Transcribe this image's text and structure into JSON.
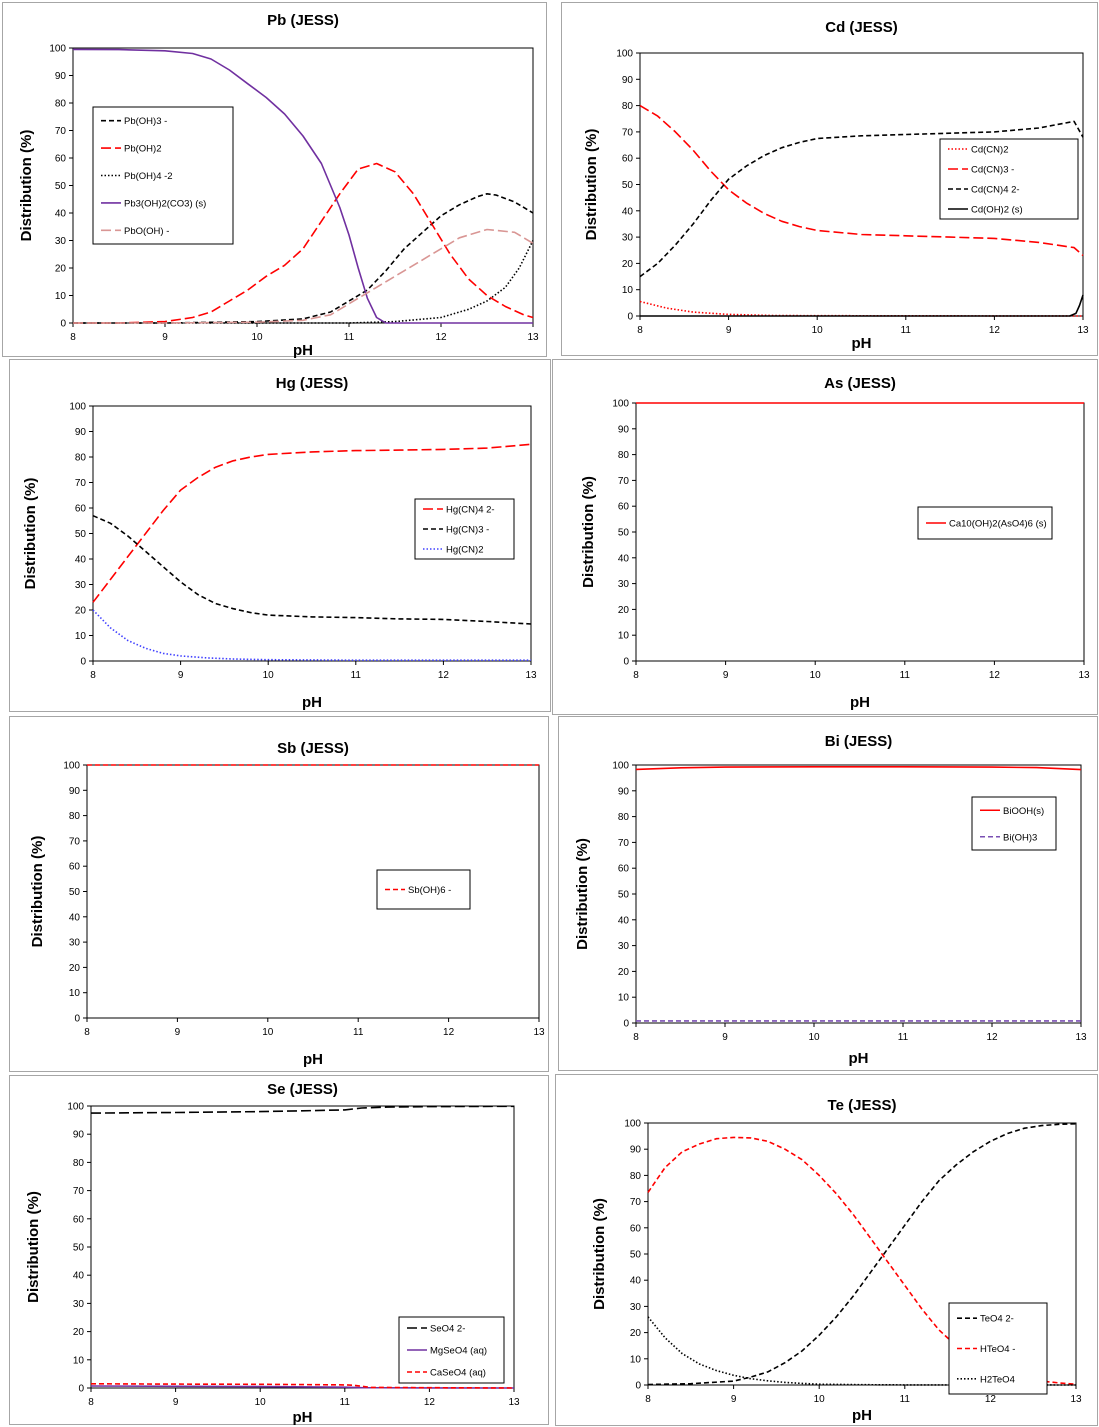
{
  "colors": {
    "red": "#ff0000",
    "black": "#000000",
    "purple": "#7030a0",
    "rosy": "#d99694",
    "blue": "#4f81bd",
    "violet": "#7a4fb3"
  },
  "chart_data": [
    {
      "id": "pb",
      "type": "line",
      "title": "Pb (JESS)",
      "xlabel": "pH",
      "ylabel": "Distribution (%)",
      "xlim": [
        8,
        13
      ],
      "ylim": [
        0,
        100
      ],
      "xticks": [
        "8",
        "9",
        "10",
        "11",
        "12",
        "13"
      ],
      "yticks": [
        "0",
        "10",
        "20",
        "30",
        "40",
        "50",
        "60",
        "70",
        "80",
        "90",
        "100"
      ],
      "legend_position": "upper-left",
      "series": [
        {
          "name": "Pb(OH)3 -",
          "color": "#000000",
          "dash": "dashed",
          "x": [
            8,
            9,
            10,
            10.5,
            10.8,
            11,
            11.2,
            11.4,
            11.6,
            11.8,
            12,
            12.2,
            12.4,
            12.5,
            12.6,
            12.8,
            13
          ],
          "y": [
            0,
            0,
            0.5,
            1.5,
            4,
            8,
            12,
            19,
            27,
            33,
            39,
            43,
            46,
            47,
            46.5,
            44,
            40
          ]
        },
        {
          "name": "Pb(OH)2",
          "color": "#ff0000",
          "dash": "longdash",
          "x": [
            8,
            8.5,
            9,
            9.3,
            9.5,
            9.7,
            9.9,
            10.1,
            10.3,
            10.5,
            10.7,
            10.9,
            11.1,
            11.3,
            11.5,
            11.7,
            11.9,
            12.1,
            12.3,
            12.5,
            12.7,
            12.9,
            13
          ],
          "y": [
            0,
            0,
            0.5,
            2,
            4,
            8,
            12,
            17,
            21,
            27,
            37,
            47,
            56,
            58,
            55,
            47,
            36,
            25,
            16,
            10,
            6,
            3,
            2
          ]
        },
        {
          "name": "Pb(OH)4 -2",
          "color": "#000000",
          "dash": "dotted",
          "x": [
            8,
            11,
            11.5,
            12,
            12.3,
            12.5,
            12.7,
            12.85,
            13
          ],
          "y": [
            0,
            0,
            0.5,
            2,
            5,
            8,
            13,
            20,
            30
          ]
        },
        {
          "name": "Pb3(OH)2(CO3) (s)",
          "color": "#7030a0",
          "dash": "solid",
          "x": [
            8,
            8.5,
            9,
            9.3,
            9.5,
            9.7,
            9.9,
            10.1,
            10.3,
            10.5,
            10.7,
            10.9,
            11,
            11.1,
            11.2,
            11.3,
            11.4,
            13
          ],
          "y": [
            99.5,
            99.4,
            99,
            98,
            96,
            92,
            87,
            82,
            76,
            68,
            58,
            42,
            32,
            20,
            9,
            2,
            0,
            0
          ]
        },
        {
          "name": "PbO(OH) -",
          "color": "#d99694",
          "dash": "longdash",
          "x": [
            8,
            9,
            10,
            10.5,
            10.8,
            11,
            11.3,
            11.6,
            11.9,
            12.2,
            12.5,
            12.8,
            13
          ],
          "y": [
            0,
            0,
            0.3,
            1,
            3,
            7,
            13,
            19,
            25,
            31,
            34,
            33,
            29
          ]
        }
      ]
    },
    {
      "id": "cd",
      "type": "line",
      "title": "Cd (JESS)",
      "xlabel": "pH",
      "ylabel": "Distribution (%)",
      "xlim": [
        8,
        13
      ],
      "ylim": [
        0,
        100
      ],
      "xticks": [
        "8",
        "9",
        "10",
        "11",
        "12",
        "13"
      ],
      "yticks": [
        "0",
        "10",
        "20",
        "30",
        "40",
        "50",
        "60",
        "70",
        "80",
        "90",
        "100"
      ],
      "legend_position": "right",
      "series": [
        {
          "name": "Cd(CN)2",
          "color": "#ff0000",
          "dash": "dotted",
          "x": [
            8,
            8.3,
            8.6,
            9,
            9.5,
            10,
            13
          ],
          "y": [
            5.5,
            3,
            1.5,
            0.6,
            0.2,
            0.1,
            0
          ]
        },
        {
          "name": "Cd(CN)3 -",
          "color": "#ff0000",
          "dash": "longdash",
          "x": [
            8,
            8.2,
            8.4,
            8.6,
            8.8,
            9,
            9.2,
            9.4,
            9.6,
            9.8,
            10,
            10.5,
            11,
            11.5,
            12,
            12.5,
            12.9,
            13
          ],
          "y": [
            80,
            76,
            70,
            63,
            55,
            48,
            43,
            39,
            36,
            34,
            32.5,
            31,
            30.5,
            30,
            29.5,
            28,
            26,
            23
          ]
        },
        {
          "name": "Cd(CN)4 2-",
          "color": "#000000",
          "dash": "dashed",
          "x": [
            8,
            8.2,
            8.4,
            8.6,
            8.8,
            9,
            9.2,
            9.4,
            9.6,
            9.8,
            10,
            10.5,
            11,
            11.5,
            12,
            12.5,
            12.9,
            13
          ],
          "y": [
            15,
            20,
            27,
            35,
            44,
            52,
            57,
            61,
            64,
            66,
            67.5,
            68.5,
            69,
            69.5,
            70,
            71.5,
            74,
            68
          ]
        },
        {
          "name": "Cd(OH)2 (s)",
          "color": "#000000",
          "dash": "solid",
          "x": [
            8,
            12.85,
            12.92,
            12.96,
            13
          ],
          "y": [
            0,
            0,
            1,
            4,
            8
          ]
        }
      ]
    },
    {
      "id": "hg",
      "type": "line",
      "title": "Hg (JESS)",
      "xlabel": "pH",
      "ylabel": "Distribution (%)",
      "xlim": [
        8,
        13
      ],
      "ylim": [
        0,
        100
      ],
      "xticks": [
        "8",
        "9",
        "10",
        "11",
        "12",
        "13"
      ],
      "yticks": [
        "0",
        "10",
        "20",
        "30",
        "40",
        "50",
        "60",
        "70",
        "80",
        "90",
        "100"
      ],
      "legend_position": "right",
      "series": [
        {
          "name": "Hg(CN)4 2-",
          "color": "#ff0000",
          "dash": "longdash",
          "x": [
            8,
            8.2,
            8.4,
            8.6,
            8.8,
            9,
            9.2,
            9.4,
            9.6,
            9.8,
            10,
            10.5,
            11,
            11.5,
            12,
            12.5,
            13
          ],
          "y": [
            23,
            32,
            41,
            50,
            59,
            67,
            72,
            76,
            78.5,
            80,
            81,
            82,
            82.5,
            82.7,
            83,
            83.5,
            85
          ]
        },
        {
          "name": "Hg(CN)3 -",
          "color": "#000000",
          "dash": "dashed",
          "x": [
            8,
            8.2,
            8.4,
            8.6,
            8.8,
            9,
            9.2,
            9.4,
            9.6,
            9.8,
            10,
            10.5,
            11,
            11.5,
            12,
            12.5,
            13
          ],
          "y": [
            57,
            54,
            49,
            43,
            37,
            31,
            26,
            22.5,
            20.5,
            19,
            18,
            17.3,
            17,
            16.5,
            16.3,
            15.5,
            14.5
          ]
        },
        {
          "name": "Hg(CN)2",
          "color": "#4040ff",
          "dash": "dotted",
          "x": [
            8,
            8.2,
            8.4,
            8.6,
            8.8,
            9,
            9.3,
            9.6,
            10,
            11,
            13
          ],
          "y": [
            20,
            13,
            8,
            5,
            3,
            2,
            1.2,
            0.8,
            0.5,
            0.3,
            0.3
          ]
        }
      ]
    },
    {
      "id": "as",
      "type": "line",
      "title": "As (JESS)",
      "xlabel": "pH",
      "ylabel": "Distribution (%)",
      "xlim": [
        8,
        13
      ],
      "ylim": [
        0,
        100
      ],
      "xticks": [
        "8",
        "9",
        "10",
        "11",
        "12",
        "13"
      ],
      "yticks": [
        "0",
        "10",
        "20",
        "30",
        "40",
        "50",
        "60",
        "70",
        "80",
        "90",
        "100"
      ],
      "legend_position": "right",
      "series": [
        {
          "name": "Ca10(OH)2(AsO4)6 (s)",
          "color": "#ff0000",
          "dash": "solid",
          "x": [
            8,
            13
          ],
          "y": [
            100,
            100
          ]
        }
      ]
    },
    {
      "id": "sb",
      "type": "line",
      "title": "Sb (JESS)",
      "xlabel": "pH",
      "ylabel": "Distribution (%)",
      "xlim": [
        8,
        13
      ],
      "ylim": [
        0,
        100
      ],
      "xticks": [
        "8",
        "9",
        "10",
        "11",
        "12",
        "13"
      ],
      "yticks": [
        "0",
        "10",
        "20",
        "30",
        "40",
        "50",
        "60",
        "70",
        "80",
        "90",
        "100"
      ],
      "legend_position": "right",
      "series": [
        {
          "name": "Sb(OH)6 -",
          "color": "#ff0000",
          "dash": "dashed",
          "x": [
            8,
            13
          ],
          "y": [
            100,
            100
          ]
        }
      ]
    },
    {
      "id": "bi",
      "type": "line",
      "title": "Bi (JESS)",
      "xlabel": "pH",
      "ylabel": "Distribution (%)",
      "xlim": [
        8,
        13
      ],
      "ylim": [
        0,
        100
      ],
      "xticks": [
        "8",
        "9",
        "10",
        "11",
        "12",
        "13"
      ],
      "yticks": [
        "0",
        "10",
        "20",
        "30",
        "40",
        "50",
        "60",
        "70",
        "80",
        "90",
        "100"
      ],
      "legend_position": "right",
      "series": [
        {
          "name": "BiOOH(s)",
          "color": "#ff0000",
          "dash": "solid",
          "x": [
            8,
            8.5,
            9,
            10,
            11,
            12,
            12.5,
            13
          ],
          "y": [
            98.3,
            98.9,
            99.2,
            99.3,
            99.3,
            99.2,
            99,
            98.2
          ]
        },
        {
          "name": "Bi(OH)3",
          "color": "#7a4fb3",
          "dash": "dashed",
          "x": [
            8,
            13
          ],
          "y": [
            0.8,
            0.8
          ]
        }
      ]
    },
    {
      "id": "se",
      "type": "line",
      "title": "Se (JESS)",
      "xlabel": "pH",
      "ylabel": "Distribution (%)",
      "xlim": [
        8,
        13
      ],
      "ylim": [
        0,
        100
      ],
      "xticks": [
        "8",
        "9",
        "10",
        "11",
        "12",
        "13"
      ],
      "yticks": [
        "0",
        "10",
        "20",
        "30",
        "40",
        "50",
        "60",
        "70",
        "80",
        "90",
        "100"
      ],
      "legend_position": "right",
      "series": [
        {
          "name": "SeO4 2-",
          "color": "#000000",
          "dash": "longdash",
          "x": [
            8,
            9,
            10,
            10.5,
            11,
            11.2,
            11.5,
            12,
            13
          ],
          "y": [
            97.5,
            97.7,
            98,
            98.3,
            98.6,
            99.3,
            99.6,
            99.8,
            99.9
          ]
        },
        {
          "name": "MgSeO4 (aq)",
          "color": "#7030a0",
          "dash": "solid",
          "x": [
            8,
            9,
            10,
            11,
            11.2,
            12,
            13
          ],
          "y": [
            0.7,
            0.6,
            0.5,
            0.3,
            0.1,
            0.05,
            0
          ]
        },
        {
          "name": "CaSeO4 (aq)",
          "color": "#ff0000",
          "dash": "dashed",
          "x": [
            8,
            9,
            10,
            10.5,
            11,
            11.1,
            11.3,
            12,
            13
          ],
          "y": [
            1.5,
            1.4,
            1.3,
            1.2,
            1.1,
            1.0,
            0.2,
            0.1,
            0
          ]
        }
      ]
    },
    {
      "id": "te",
      "type": "line",
      "title": "Te (JESS)",
      "xlabel": "pH",
      "ylabel": "Distribution (%)",
      "xlim": [
        8,
        13
      ],
      "ylim": [
        0,
        100
      ],
      "xticks": [
        "8",
        "9",
        "10",
        "11",
        "12",
        "13"
      ],
      "yticks": [
        "0",
        "10",
        "20",
        "30",
        "40",
        "50",
        "60",
        "70",
        "80",
        "90",
        "100"
      ],
      "legend_position": "right",
      "series": [
        {
          "name": "TeO4 2-",
          "color": "#000000",
          "dash": "dashed",
          "x": [
            8,
            8.5,
            9,
            9.2,
            9.4,
            9.6,
            9.8,
            10,
            10.2,
            10.4,
            10.6,
            10.8,
            11,
            11.2,
            11.4,
            11.6,
            11.8,
            12,
            12.2,
            12.4,
            12.6,
            12.8,
            13
          ],
          "y": [
            0.2,
            0.5,
            1.5,
            3,
            5,
            8.5,
            13,
            19,
            26,
            34,
            43,
            52,
            61,
            70,
            78,
            84,
            89,
            93,
            96,
            98,
            99,
            99.5,
            99.7
          ]
        },
        {
          "name": "HTeO4 -",
          "color": "#ff0000",
          "dash": "dashed",
          "x": [
            8,
            8.2,
            8.4,
            8.6,
            8.8,
            9,
            9.2,
            9.4,
            9.6,
            9.8,
            10,
            10.2,
            10.4,
            10.6,
            10.8,
            11,
            11.2,
            11.4,
            11.6,
            11.8,
            12,
            12.2,
            12.4,
            12.6,
            12.8,
            13
          ],
          "y": [
            73.5,
            83,
            89,
            92,
            94,
            94.5,
            94.3,
            93,
            90,
            86,
            80,
            73,
            65,
            56,
            47,
            38,
            29,
            21,
            15,
            10.5,
            6.5,
            4,
            2.5,
            1.5,
            0.8,
            0.3
          ]
        },
        {
          "name": "H2TeO4",
          "color": "#000000",
          "dash": "dotted",
          "x": [
            8,
            8.2,
            8.4,
            8.6,
            8.8,
            9,
            9.2,
            9.4,
            9.6,
            9.8,
            10,
            10.5,
            11,
            13
          ],
          "y": [
            26,
            18,
            12,
            8,
            5.5,
            3.7,
            2.4,
            1.6,
            1.0,
            0.6,
            0.3,
            0.1,
            0.05,
            0
          ]
        }
      ]
    }
  ]
}
